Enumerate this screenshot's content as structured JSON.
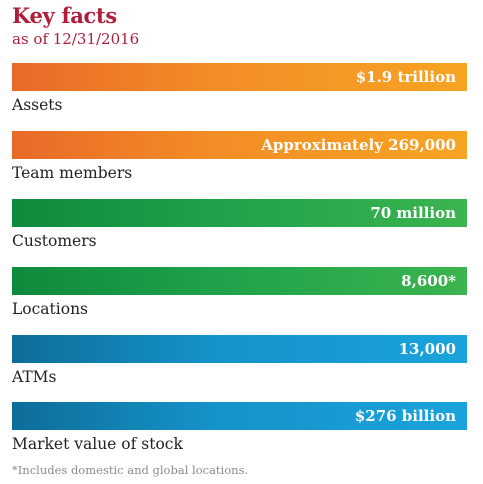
{
  "header": {
    "title": "Key facts",
    "subtitle": "as of 12/31/2016"
  },
  "colors": {
    "title": "#b01d3a",
    "orange": "#f38d26",
    "green": "#1ea24a",
    "blue": "#1593c9"
  },
  "facts": [
    {
      "value": "$1.9 trillion",
      "label": "Assets",
      "color": "orange"
    },
    {
      "value": "Approximately 269,000",
      "label": "Team members",
      "color": "orange"
    },
    {
      "value": "70 million",
      "label": "Customers",
      "color": "green"
    },
    {
      "value": "8,600*",
      "label": "Locations",
      "color": "green"
    },
    {
      "value": "13,000",
      "label": "ATMs",
      "color": "blue"
    },
    {
      "value": "$276 billion",
      "label": "Market value of stock",
      "color": "blue"
    }
  ],
  "footnote": "*Includes domestic and global locations."
}
